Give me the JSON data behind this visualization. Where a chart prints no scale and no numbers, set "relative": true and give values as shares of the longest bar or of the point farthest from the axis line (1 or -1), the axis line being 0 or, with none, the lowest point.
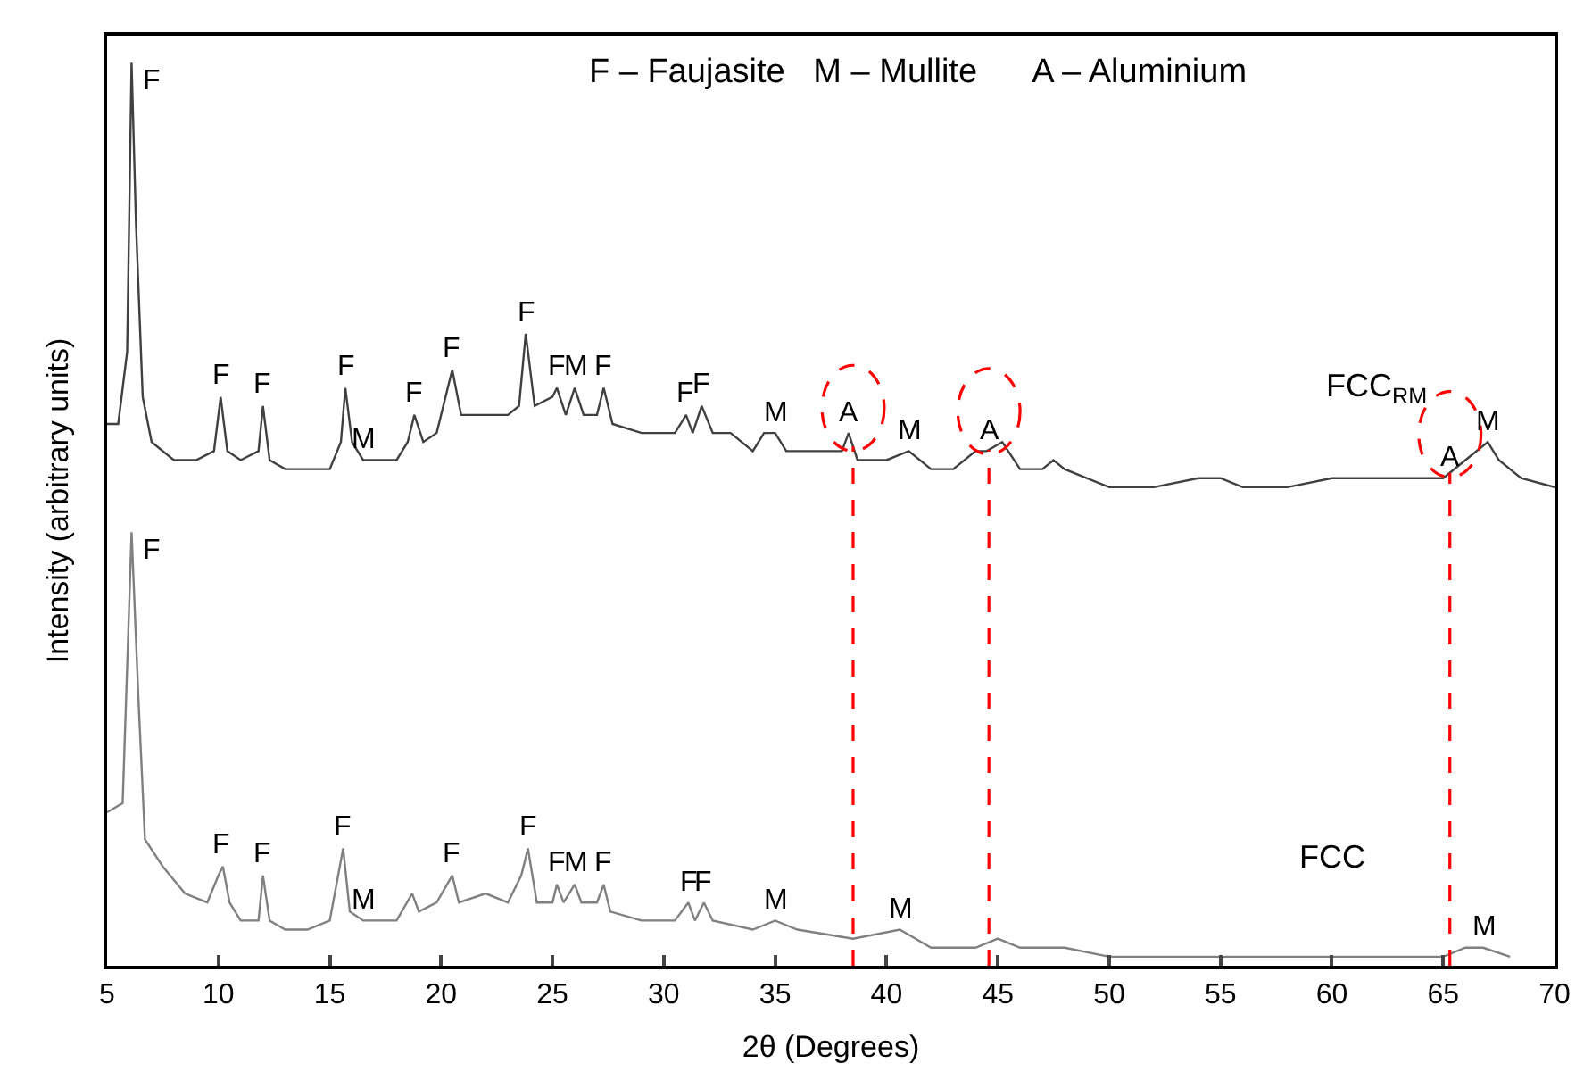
{
  "chart_data": {
    "type": "line",
    "relative": true,
    "xlabel": "2θ (Degrees)",
    "ylabel": "Intensity (arbitrary units)",
    "xlim": [
      5,
      70
    ],
    "xticks": [
      5,
      10,
      15,
      20,
      25,
      30,
      35,
      40,
      45,
      50,
      55,
      60,
      65,
      70
    ],
    "legend": false,
    "marker": "none",
    "line_style": "solid",
    "series": [
      {
        "name": "FCC$_{RM}$",
        "color": "#404040",
        "x": [
          5.0,
          5.5,
          5.9,
          6.1,
          6.3,
          6.6,
          7.0,
          8,
          9,
          9.8,
          10.1,
          10.4,
          11,
          11.8,
          12.0,
          12.3,
          13,
          14,
          15,
          15.5,
          15.7,
          16.0,
          16.5,
          17,
          18,
          18.5,
          18.8,
          19.2,
          19.8,
          20.5,
          20.9,
          22,
          23,
          23.5,
          23.8,
          24.2,
          25,
          25.2,
          25.6,
          26.0,
          26.4,
          27.0,
          27.3,
          27.7,
          29,
          30.5,
          31,
          31.3,
          31.7,
          32.2,
          33,
          34,
          34.5,
          35,
          35.5,
          36,
          37,
          38,
          38.3,
          38.7,
          40,
          41,
          42,
          43,
          44,
          44.5,
          45.2,
          46,
          47,
          47.5,
          48,
          50,
          52,
          54,
          55,
          56,
          58,
          60,
          62,
          64,
          65,
          66,
          67,
          67.5,
          68.5,
          70
        ],
        "values": [
          0.6,
          0.6,
          0.68,
          1.0,
          0.82,
          0.63,
          0.58,
          0.56,
          0.56,
          0.57,
          0.63,
          0.57,
          0.56,
          0.57,
          0.62,
          0.56,
          0.55,
          0.55,
          0.55,
          0.58,
          0.64,
          0.58,
          0.56,
          0.56,
          0.56,
          0.58,
          0.61,
          0.58,
          0.59,
          0.66,
          0.61,
          0.61,
          0.61,
          0.62,
          0.7,
          0.62,
          0.63,
          0.64,
          0.61,
          0.64,
          0.61,
          0.61,
          0.64,
          0.6,
          0.59,
          0.59,
          0.61,
          0.59,
          0.62,
          0.59,
          0.59,
          0.57,
          0.59,
          0.59,
          0.57,
          0.57,
          0.57,
          0.57,
          0.59,
          0.56,
          0.56,
          0.57,
          0.55,
          0.55,
          0.57,
          0.57,
          0.58,
          0.55,
          0.55,
          0.56,
          0.55,
          0.53,
          0.53,
          0.54,
          0.54,
          0.53,
          0.53,
          0.54,
          0.54,
          0.54,
          0.54,
          0.56,
          0.58,
          0.56,
          0.54,
          0.53
        ]
      },
      {
        "name": "FCC",
        "color": "#808080",
        "x": [
          5.0,
          5.7,
          6.1,
          6.4,
          6.7,
          7.5,
          8.5,
          9.5,
          10.0,
          10.2,
          10.5,
          11,
          11.8,
          12.0,
          12.3,
          13,
          14,
          15,
          15.6,
          15.9,
          16.5,
          18,
          18.7,
          19.0,
          19.8,
          20.5,
          20.8,
          22,
          23,
          23.6,
          23.9,
          24.3,
          25,
          25.2,
          25.5,
          26.0,
          26.3,
          27.0,
          27.3,
          27.6,
          29,
          30.5,
          31.1,
          31.4,
          31.8,
          32.2,
          34,
          35,
          36,
          38.5,
          40.6,
          42,
          44,
          45,
          46,
          47.5,
          48,
          50,
          55,
          60,
          65,
          66,
          66.8,
          68
        ],
        "values": [
          0.17,
          0.18,
          0.48,
          0.3,
          0.14,
          0.11,
          0.08,
          0.07,
          0.1,
          0.11,
          0.07,
          0.05,
          0.05,
          0.1,
          0.05,
          0.04,
          0.04,
          0.05,
          0.13,
          0.06,
          0.05,
          0.05,
          0.08,
          0.06,
          0.07,
          0.1,
          0.07,
          0.08,
          0.07,
          0.1,
          0.13,
          0.07,
          0.07,
          0.09,
          0.07,
          0.09,
          0.07,
          0.07,
          0.09,
          0.06,
          0.05,
          0.05,
          0.07,
          0.05,
          0.07,
          0.05,
          0.04,
          0.05,
          0.04,
          0.03,
          0.04,
          0.02,
          0.02,
          0.03,
          0.02,
          0.02,
          0.02,
          0.01,
          0.01,
          0.01,
          0.01,
          0.02,
          0.02,
          0.01
        ]
      }
    ],
    "ref_lines": [
      {
        "axis": "x",
        "value": 38.5,
        "color": "#ff0000",
        "line_style": "dashed"
      },
      {
        "axis": "x",
        "value": 44.6,
        "color": "#ff0000",
        "line_style": "dashed"
      },
      {
        "axis": "x",
        "value": 65.3,
        "color": "#ff0000",
        "line_style": "dashed"
      }
    ],
    "annotations": [
      "F – Faujasite   M – Mullite      A – Aluminium",
      {
        "text": "F",
        "x": 6.1,
        "y": 1.0
      },
      {
        "text": "F",
        "x": 10.1,
        "y": 0.63
      },
      {
        "text": "F",
        "x": 12.0,
        "y": 0.62
      },
      {
        "text": "F",
        "x": 15.7,
        "y": 0.64
      },
      {
        "text": "M",
        "x": 16.5,
        "y": 0.56
      },
      {
        "text": "F",
        "x": 18.8,
        "y": 0.61
      },
      {
        "text": "F",
        "x": 20.5,
        "y": 0.66
      },
      {
        "text": "F",
        "x": 23.8,
        "y": 0.7
      },
      {
        "text": "F",
        "x": 25.2,
        "y": 0.64
      },
      {
        "text": "M",
        "x": 26.0,
        "y": 0.64
      },
      {
        "text": "F",
        "x": 27.3,
        "y": 0.64
      },
      {
        "text": "F",
        "x": 31.0,
        "y": 0.61
      },
      {
        "text": "F",
        "x": 31.7,
        "y": 0.62
      },
      {
        "text": "M",
        "x": 35.0,
        "y": 0.59
      },
      {
        "text": "A",
        "x": 38.3,
        "y": 0.59
      },
      {
        "text": "M",
        "x": 41.0,
        "y": 0.57
      },
      {
        "text": "A",
        "x": 44.6,
        "y": 0.57
      },
      {
        "text": "A",
        "x": 65.3,
        "y": 0.54
      },
      {
        "text": "M",
        "x": 67.0,
        "y": 0.58
      },
      {
        "text": "F",
        "x": 6.1,
        "y": 0.48
      },
      {
        "text": "F",
        "x": 10.1,
        "y": 0.11
      },
      {
        "text": "F",
        "x": 12.0,
        "y": 0.1
      },
      {
        "text": "F",
        "x": 15.6,
        "y": 0.13
      },
      {
        "text": "M",
        "x": 16.5,
        "y": 0.05
      },
      {
        "text": "F",
        "x": 20.5,
        "y": 0.1
      },
      {
        "text": "F",
        "x": 23.9,
        "y": 0.13
      },
      {
        "text": "F",
        "x": 25.2,
        "y": 0.09
      },
      {
        "text": "M",
        "x": 26.0,
        "y": 0.09
      },
      {
        "text": "F",
        "x": 27.3,
        "y": 0.09
      },
      {
        "text": "F",
        "x": 31.1,
        "y": 0.07
      },
      {
        "text": "F",
        "x": 31.8,
        "y": 0.07
      },
      {
        "text": "M",
        "x": 35.0,
        "y": 0.05
      },
      {
        "text": "M",
        "x": 40.6,
        "y": 0.04
      },
      {
        "text": "M",
        "x": 66.8,
        "y": 0.02
      }
    ]
  }
}
